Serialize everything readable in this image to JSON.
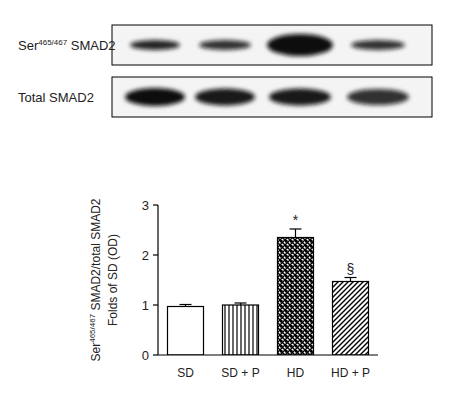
{
  "blot": {
    "rows": [
      "Ser465/467 SMAD2",
      "Total SMAD2"
    ]
  },
  "chart_data": {
    "type": "bar",
    "ylabel": [
      "Ser465/467 SMAD2/total SMAD2",
      "Folds of SD (OD)"
    ],
    "categories": [
      "SD",
      "SD + P",
      "HD",
      "HD + P"
    ],
    "values": [
      0.97,
      1.0,
      2.35,
      1.47
    ],
    "errors": [
      0.04,
      0.04,
      0.17,
      0.08
    ],
    "annotations": [
      {
        "category": "HD",
        "text": "*"
      },
      {
        "category": "HD + P",
        "text": "§"
      }
    ],
    "color": "#000000",
    "ylim": [
      0,
      3
    ],
    "yticks": [
      0,
      1,
      2,
      3
    ],
    "grid": false
  }
}
